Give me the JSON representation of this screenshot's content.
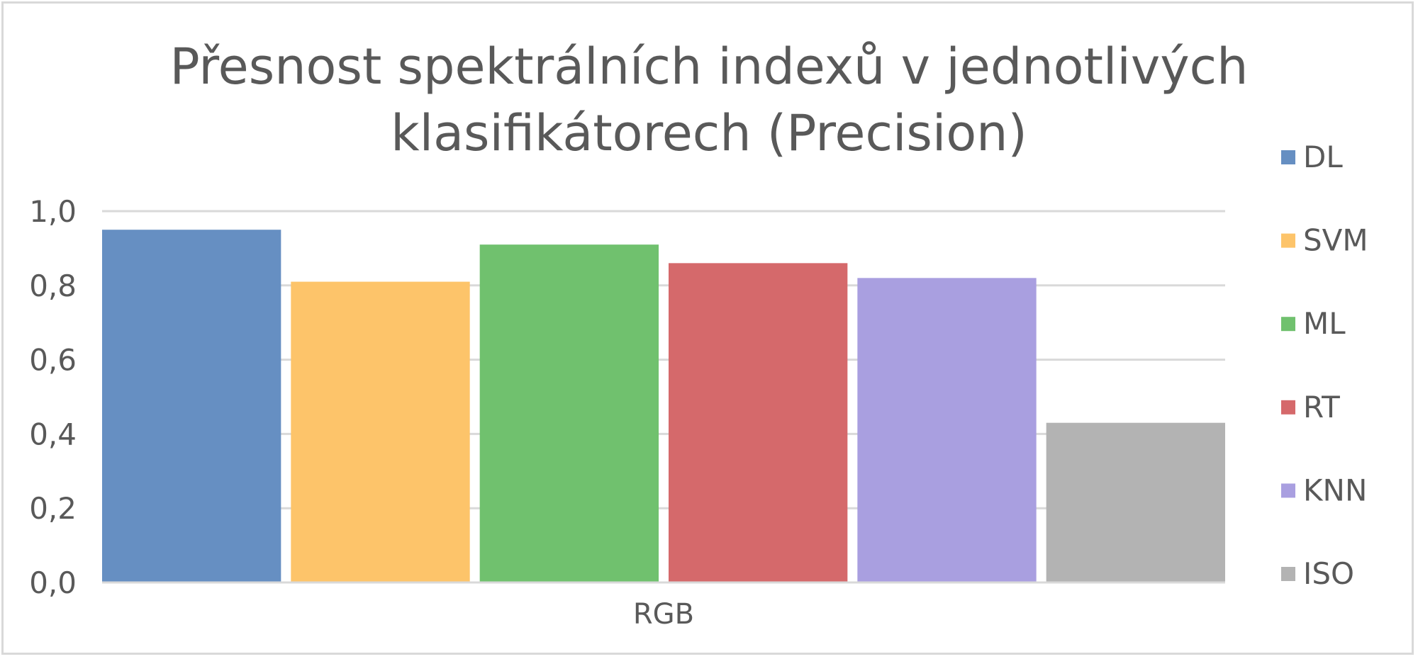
{
  "chart_data": {
    "type": "bar",
    "title_lines": [
      "Přesnost spektrálních indexů v jednotlivých",
      "klasifikátorech (Precision)"
    ],
    "categories": [
      "RGB"
    ],
    "series": [
      {
        "name": "DL",
        "values": [
          0.95
        ],
        "color": "#668fc2"
      },
      {
        "name": "SVM",
        "values": [
          0.81
        ],
        "color": "#fdc46a"
      },
      {
        "name": "ML",
        "values": [
          0.91
        ],
        "color": "#70c16e"
      },
      {
        "name": "RT",
        "values": [
          0.86
        ],
        "color": "#d5696b"
      },
      {
        "name": "KNN",
        "values": [
          0.82
        ],
        "color": "#a99fe0"
      },
      {
        "name": "ISO",
        "values": [
          0.43
        ],
        "color": "#b3b3b3"
      }
    ],
    "ylim": [
      0,
      1
    ],
    "yticks": [
      "0,0",
      "0,2",
      "0,4",
      "0,6",
      "0,8",
      "1,0"
    ],
    "grid": true,
    "legend": "right"
  }
}
